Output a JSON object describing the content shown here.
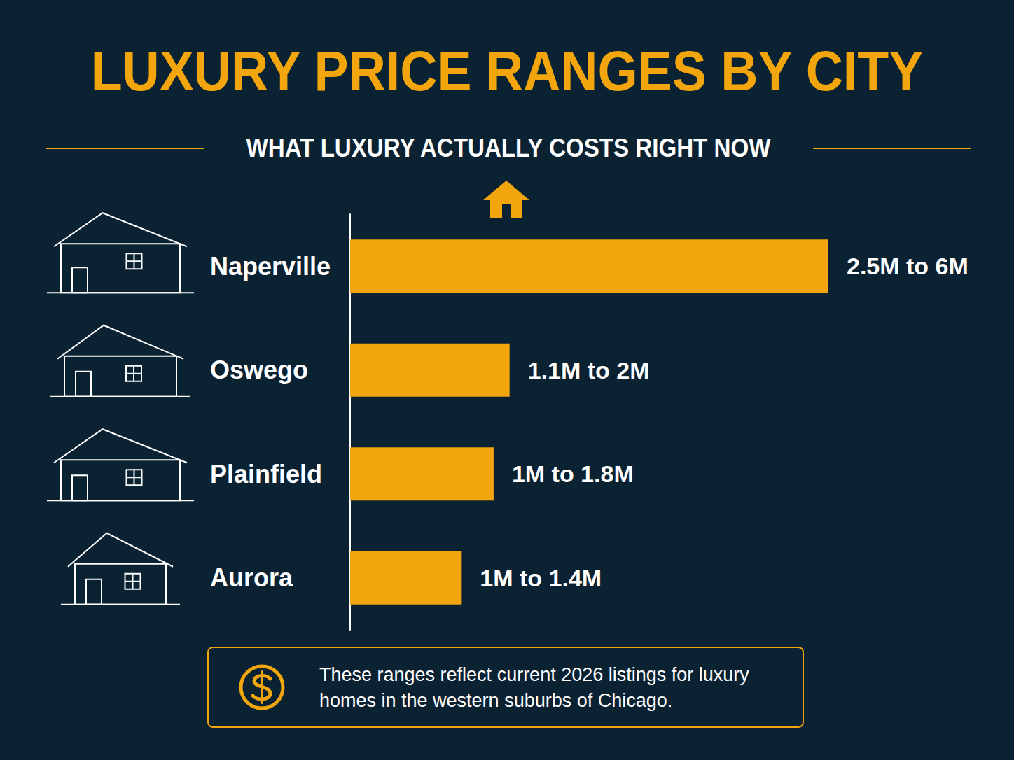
{
  "chart_data": {
    "type": "bar",
    "title": "LUXURY PRICE RANGES BY CITY",
    "subtitle": "WHAT LUXURY ACTUALLY COSTS RIGHT NOW",
    "annotation": "These ranges reflect current 2026 listings for luxury homes in the western suburbs of Chicago.",
    "orientation": "horizontal",
    "categories": [
      "Naperville",
      "Oswego",
      "Plainfield",
      "Aurora"
    ],
    "values": [
      6,
      2,
      1.8,
      1.4
    ],
    "value_labels": [
      "2.5M to 6M",
      "1.1M to 2M",
      "1M to 1.8M",
      "1M to 1.4M"
    ],
    "color": "#f2a50c",
    "xlim": [
      0,
      6
    ],
    "tick_labels": "y",
    "data_labels": true,
    "grid": false
  }
}
